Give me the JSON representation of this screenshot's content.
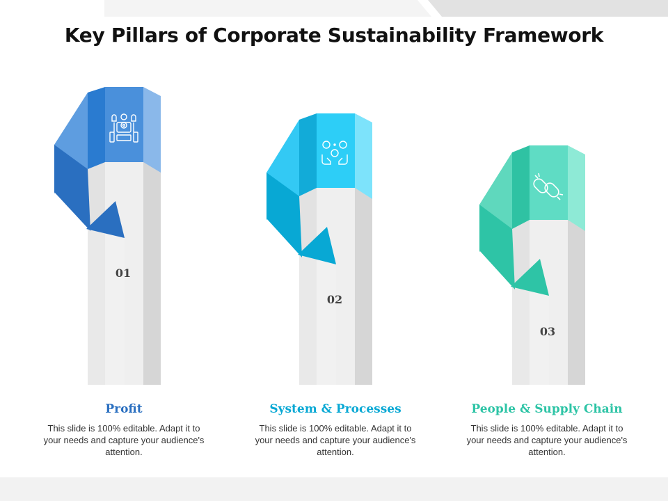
{
  "title": "Key Pillars of Corporate Sustainability Framework",
  "colors": {
    "pillar_1": "#2a6fc0",
    "pillar_2": "#08a8d4",
    "pillar_3": "#2ec4a6",
    "background": "#ffffff",
    "shaft": "#efefef"
  },
  "pillars": [
    {
      "number": "01",
      "title": "Profit",
      "description": "This slide is 100% editable. Adapt it to your needs and capture your audience's attention.",
      "icon": "robot-gears-icon",
      "color": "#2a7bd0"
    },
    {
      "number": "02",
      "title": "System & Processes",
      "description": "This slide is 100% editable. Adapt it to your needs and capture your audience's attention.",
      "icon": "hands-coins-icon",
      "color": "#12abd8"
    },
    {
      "number": "03",
      "title": "People & Supply Chain",
      "description": "This slide is 100% editable. Adapt it to your needs and capture your audience's attention.",
      "icon": "chain-link-icon",
      "color": "#2fc2a3"
    }
  ]
}
